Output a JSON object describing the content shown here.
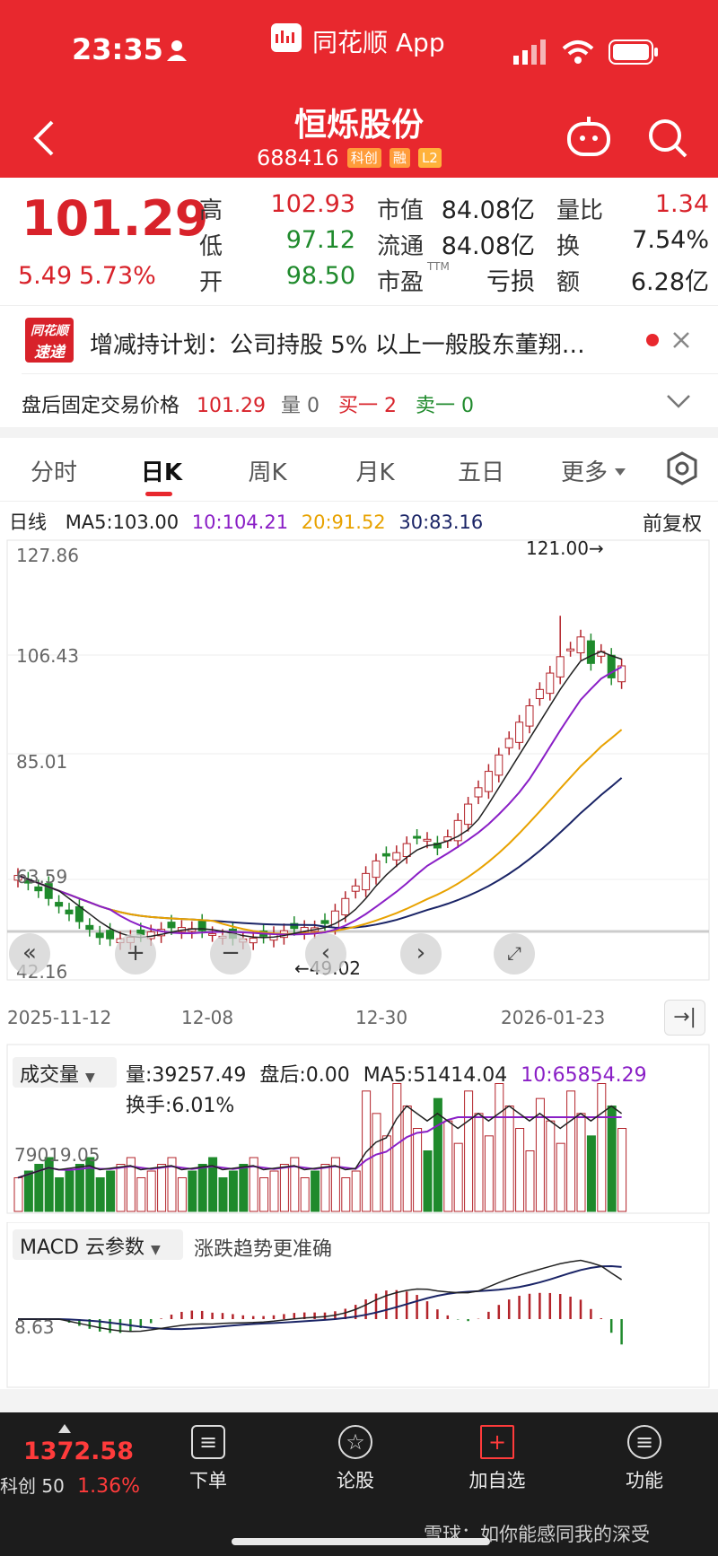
{
  "status": {
    "time": "23:35",
    "app_name": "同花顺 App",
    "icons": [
      "person-icon",
      "signal-icon",
      "wifi-icon",
      "battery-icon"
    ]
  },
  "header": {
    "title": "恒烁股份",
    "code": "688416",
    "tags": [
      "科创",
      "融",
      "L2"
    ],
    "back_icon": "back-arrow-icon",
    "robot_icon": "robot-icon",
    "search_icon": "search-icon"
  },
  "quote": {
    "price": "101.29",
    "change": "5.49",
    "change_pct": "5.73%",
    "high_label": "高",
    "high": "102.93",
    "low_label": "低",
    "low": "97.12",
    "open_label": "开",
    "open": "98.50",
    "mktcap_label": "市值",
    "mktcap": "84.08亿",
    "float_label": "流通",
    "float": "84.08亿",
    "pe_label": "市盈",
    "pe_sup": "TTM",
    "pe": "亏损",
    "vol_ratio_label": "量比",
    "vol_ratio": "1.34",
    "turnover_label": "换",
    "turnover": "7.54%",
    "amount_label": "额",
    "amount": "6.28亿",
    "colors": {
      "up": "#d8222a",
      "down": "#1f8a2c"
    }
  },
  "news": {
    "badge_line1": "同花顺",
    "badge_line2": "速递",
    "text": "增减持计划：公司持股 5% 以上一般股东董翔…"
  },
  "afterhours": {
    "label": "盘后固定交易价格",
    "price": "101.29",
    "vol_label": "量",
    "vol": "0",
    "buy": "买一 2",
    "sell": "卖一 0"
  },
  "tabs": [
    "分时",
    "日K",
    "周K",
    "月K",
    "五日",
    "更多"
  ],
  "kline": {
    "period_label": "日线",
    "ma5": "MA5:103.00",
    "ma10": "10:104.21",
    "ma20": "20:91.52",
    "ma30": "30:83.16",
    "adjust": "前复权",
    "y_labels": [
      "127.86",
      "106.43",
      "85.01",
      "63.59",
      "42.16"
    ],
    "max_label": "121.00→",
    "min_label": "←49.02",
    "x_labels": [
      "2025-11-12",
      "12-08",
      "12-30",
      "2026-01-23"
    ],
    "colors": {
      "ma5": "#222222",
      "ma10": "#8a1fc6",
      "ma20": "#e8a200",
      "ma30": "#1a2466"
    }
  },
  "volume": {
    "selector": "成交量",
    "vol": "量:39257.49",
    "after": "盘后:0.00",
    "ma5": "MA5:51414.04",
    "ma10": "10:65854.29",
    "turnover": "换手:6.01%",
    "y_label": "79019.05"
  },
  "macd": {
    "selector": "MACD 云参数",
    "hint": "涨跌趋势更准确",
    "y_label": "8.63"
  },
  "bottom_nav": {
    "index_value": "1372.58",
    "index_name": "科创 50",
    "index_pct": "1.36%",
    "items": [
      {
        "label": "下单",
        "icon": "order-icon"
      },
      {
        "label": "论股",
        "icon": "forum-icon"
      },
      {
        "label": "加自选",
        "icon": "add-watchlist-icon"
      },
      {
        "label": "功能",
        "icon": "menu-icon"
      }
    ]
  },
  "watermark": "雪球：如你能感同我的深受"
}
